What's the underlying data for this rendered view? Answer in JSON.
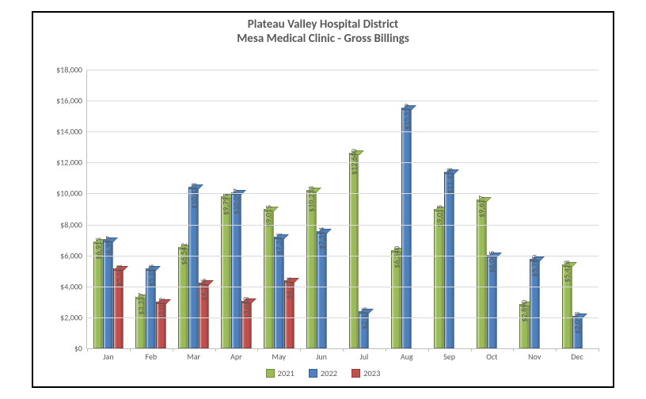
{
  "chart": {
    "type": "bar",
    "title_lines": [
      "Plateau Valley Hospital District",
      "Mesa Medical Clinic  - Gross Billings"
    ],
    "title_fontsize": 15,
    "categories": [
      "Jan",
      "Feb",
      "Mar",
      "Apr",
      "May",
      "Jun",
      "Jul",
      "Aug",
      "Sep",
      "Oct",
      "Nov",
      "Dec"
    ],
    "series": [
      {
        "name": "2021",
        "color": "#9bbb59",
        "values": [
          6915,
          3337,
          6542,
          9797,
          9015,
          10233,
          12640,
          6340,
          9015,
          9627,
          2890,
          5428
        ]
      },
      {
        "name": "2022",
        "color": "#4f81bd",
        "values": [
          6997,
          5155,
          10433,
          10097,
          7231,
          7594,
          2425,
          15529,
          11428,
          6045,
          5780,
          2093
        ]
      },
      {
        "name": "2023",
        "color": "#c0504d",
        "values": [
          5161,
          3022,
          4236,
          3058,
          4374,
          null,
          null,
          null,
          null,
          null,
          null,
          null
        ]
      }
    ],
    "ylim": [
      0,
      18000
    ],
    "ytick_step": 2000,
    "ytick_format": "currency",
    "label_fontsize": 10,
    "grid_color": "#d9d9d9",
    "axis_color": "#bfbfbf",
    "background_color": "#ffffff",
    "frame_border_color": "#000000",
    "bar_group_gap": 0.28,
    "legend_position": "bottom"
  }
}
